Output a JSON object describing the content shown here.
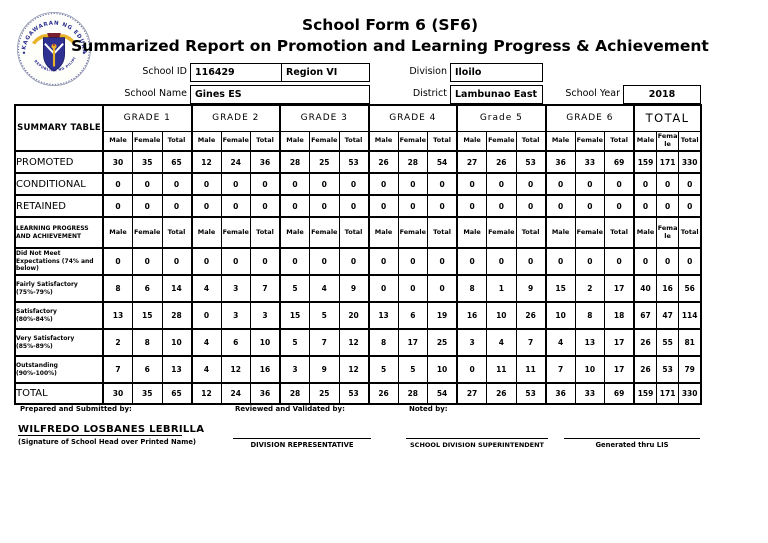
{
  "header": {
    "title": "School Form 6 (SF6)",
    "subtitle": "Summarized Report on Promotion and Learning Progress & Achievement",
    "logo": {
      "name": "deped-seal",
      "ring_top": "KAGAWARAN NG EDUKASYON",
      "ring_bottom": "REPUBLIKA NG PILIPINAS"
    },
    "fields": {
      "school_id_label": "School ID",
      "school_id_value": "116429",
      "region_value": "Region VI",
      "division_label": "Division",
      "division_value": "Iloilo",
      "school_name_label": "School Name",
      "school_name_value": "Gines ES",
      "district_label": "District",
      "district_value": "Lambunao East",
      "school_year_label": "School Year",
      "school_year_value": "2018"
    }
  },
  "colors": {
    "seal_blue": "#2e3192",
    "seal_yellow": "#e8b429",
    "seal_maroon": "#7a1f2b",
    "ink": "#000000"
  },
  "table": {
    "corner_label": "SUMMARY TABLE",
    "groups": [
      "GRADE 1",
      "GRADE 2",
      "GRADE 3",
      "GRADE 4",
      "Grade 5",
      "GRADE 6",
      "TOTAL"
    ],
    "sub_headers": [
      "Male",
      "Female",
      "Total"
    ],
    "promotion_rows": [
      {
        "label": "PROMOTED",
        "values": [
          30,
          35,
          65,
          12,
          24,
          36,
          28,
          25,
          53,
          26,
          28,
          54,
          27,
          26,
          53,
          36,
          33,
          69,
          159,
          171,
          330
        ]
      },
      {
        "label": "CONDITIONAL",
        "values": [
          0,
          0,
          0,
          0,
          0,
          0,
          0,
          0,
          0,
          0,
          0,
          0,
          0,
          0,
          0,
          0,
          0,
          0,
          0,
          0,
          0
        ]
      },
      {
        "label": "RETAINED",
        "values": [
          0,
          0,
          0,
          0,
          0,
          0,
          0,
          0,
          0,
          0,
          0,
          0,
          0,
          0,
          0,
          0,
          0,
          0,
          0,
          0,
          0
        ]
      }
    ],
    "progress_header_label": "LEARNING PROGRESS AND ACHIEVEMENT",
    "progress_rows": [
      {
        "label": "Did Not Meet Expectations (74% and below)",
        "values": [
          0,
          0,
          0,
          0,
          0,
          0,
          0,
          0,
          0,
          0,
          0,
          0,
          0,
          0,
          0,
          0,
          0,
          0,
          0,
          0,
          0
        ]
      },
      {
        "label": "Fairly Satisfactory (75%-79%)",
        "values": [
          8,
          6,
          14,
          4,
          3,
          7,
          5,
          4,
          9,
          0,
          0,
          0,
          8,
          1,
          9,
          15,
          2,
          17,
          40,
          16,
          56
        ]
      },
      {
        "label": "Satisfactory\n(80%-84%)",
        "values": [
          13,
          15,
          28,
          0,
          3,
          3,
          15,
          5,
          20,
          13,
          6,
          19,
          16,
          10,
          26,
          10,
          8,
          18,
          67,
          47,
          114
        ]
      },
      {
        "label": "Very Satisfactory (85%-89%)",
        "values": [
          2,
          8,
          10,
          4,
          6,
          10,
          5,
          7,
          12,
          8,
          17,
          25,
          3,
          4,
          7,
          4,
          13,
          17,
          26,
          55,
          81
        ]
      },
      {
        "label": "Outstanding\n(90%-100%)",
        "values": [
          7,
          6,
          13,
          4,
          12,
          16,
          3,
          9,
          12,
          5,
          5,
          10,
          0,
          11,
          11,
          7,
          10,
          17,
          26,
          53,
          79
        ]
      }
    ],
    "total_row": {
      "label": "TOTAL",
      "values": [
        30,
        35,
        65,
        12,
        24,
        36,
        28,
        25,
        53,
        26,
        28,
        54,
        27,
        26,
        53,
        36,
        33,
        69,
        159,
        171,
        330
      ]
    }
  },
  "footer": {
    "prepared_by_label": "Prepared and Submitted by:",
    "reviewed_by_label": "Reviewed and Validated by:",
    "noted_by_label": "Noted by:",
    "school_head_name": "WILFREDO LOSBANES LEBRILLA",
    "school_head_caption": "(Signature of School Head over Printed Name)",
    "division_representative_caption": "DIVISION REPRESENTATIVE",
    "superintendent_caption": "SCHOOL DIVISION SUPERINTENDENT",
    "generated_caption": "Generated thru LIS"
  }
}
